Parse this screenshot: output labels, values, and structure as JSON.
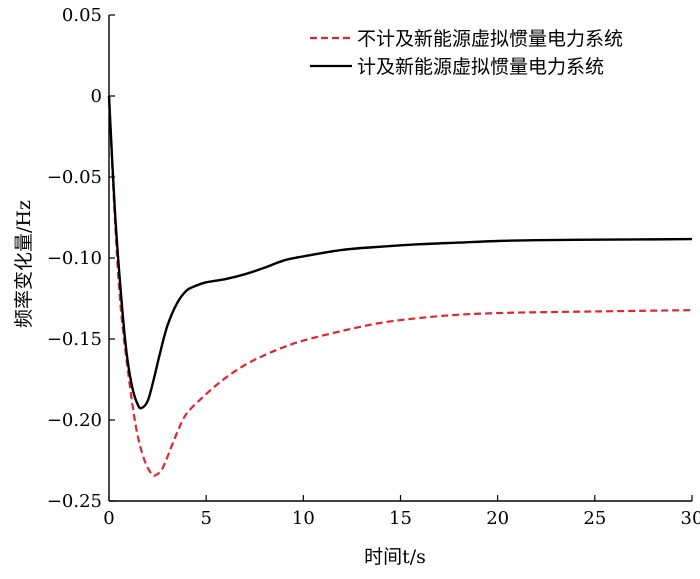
{
  "chart_data": {
    "type": "line",
    "xlabel": "时间t/s",
    "ylabel": "频率变化量/Hz",
    "xlim": [
      0,
      30
    ],
    "ylim": [
      -0.25,
      0.05
    ],
    "xticks": [
      0,
      5,
      10,
      15,
      20,
      25,
      30
    ],
    "xtick_labels": [
      "0",
      "5",
      "10",
      "15",
      "20",
      "25",
      "30"
    ],
    "yticks": [
      0.05,
      0,
      -0.05,
      -0.1,
      -0.15,
      -0.2,
      -0.25
    ],
    "ytick_labels": [
      "0.05",
      "0",
      "−0.05",
      "−0.10",
      "−0.15",
      "−0.20",
      "−0.25"
    ],
    "grid": false,
    "legend_position": "top-right",
    "series": [
      {
        "name": "不计及新能源虚拟惯量电力系统",
        "color": "#e0262a",
        "style": "dashed",
        "x": [
          0,
          0.3,
          0.6,
          1.0,
          1.4,
          1.8,
          2.2,
          2.4,
          2.7,
          3.0,
          3.5,
          4.0,
          5.0,
          6.0,
          7.0,
          8.0,
          9.0,
          10.0,
          12.0,
          14.0,
          16.0,
          18.0,
          20.0,
          22.0,
          25.0,
          28.0,
          30.0
        ],
        "y": [
          0,
          -0.075,
          -0.13,
          -0.172,
          -0.205,
          -0.224,
          -0.2335,
          -0.234,
          -0.231,
          -0.223,
          -0.208,
          -0.196,
          -0.184,
          -0.174,
          -0.166,
          -0.16,
          -0.155,
          -0.151,
          -0.145,
          -0.14,
          -0.137,
          -0.135,
          -0.134,
          -0.1335,
          -0.133,
          -0.1325,
          -0.1322
        ]
      },
      {
        "name": "计及新能源虚拟惯量电力系统",
        "color": "#000000",
        "style": "solid",
        "x": [
          0,
          0.3,
          0.6,
          0.9,
          1.2,
          1.5,
          1.7,
          2.0,
          2.3,
          2.6,
          3.0,
          3.5,
          4.0,
          4.5,
          5.0,
          6.0,
          7.0,
          8.0,
          9.0,
          10.0,
          12.0,
          14.0,
          16.0,
          18.0,
          20.0,
          22.0,
          25.0,
          28.0,
          30.0
        ],
        "y": [
          0,
          -0.07,
          -0.12,
          -0.158,
          -0.18,
          -0.191,
          -0.1925,
          -0.188,
          -0.175,
          -0.16,
          -0.142,
          -0.128,
          -0.12,
          -0.117,
          -0.115,
          -0.113,
          -0.11,
          -0.106,
          -0.1015,
          -0.099,
          -0.095,
          -0.093,
          -0.0915,
          -0.0905,
          -0.0895,
          -0.089,
          -0.0887,
          -0.0885,
          -0.0883
        ]
      }
    ]
  }
}
